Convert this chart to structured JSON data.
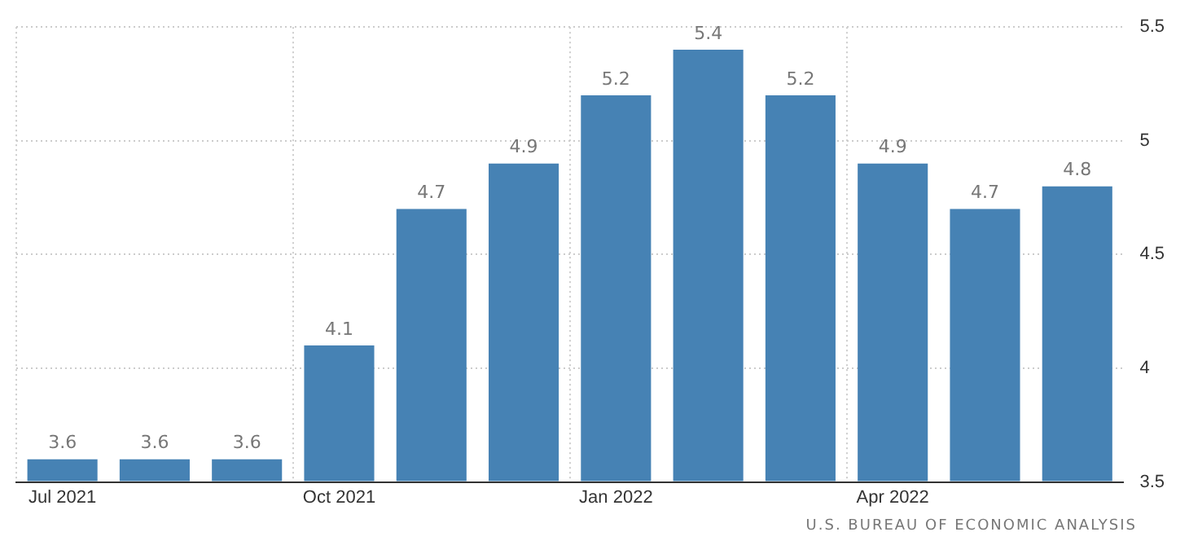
{
  "chart_data": {
    "type": "bar",
    "categories": [
      "Jul 2021",
      null,
      null,
      "Oct 2021",
      null,
      null,
      "Jan 2022",
      null,
      null,
      "Apr 2022",
      null,
      null
    ],
    "values": [
      3.6,
      3.6,
      3.6,
      4.1,
      4.7,
      4.9,
      5.2,
      5.4,
      5.2,
      4.9,
      4.7,
      4.8
    ],
    "color": "#4682b4",
    "ylim": [
      3.5,
      5.5
    ],
    "yticks": [
      3.5,
      4,
      4.5,
      5,
      5.5
    ],
    "grid": true,
    "data_labels": true,
    "legend": false,
    "annotations": [
      "U.S. BUREAU OF ECONOMIC ANALYSIS"
    ]
  }
}
